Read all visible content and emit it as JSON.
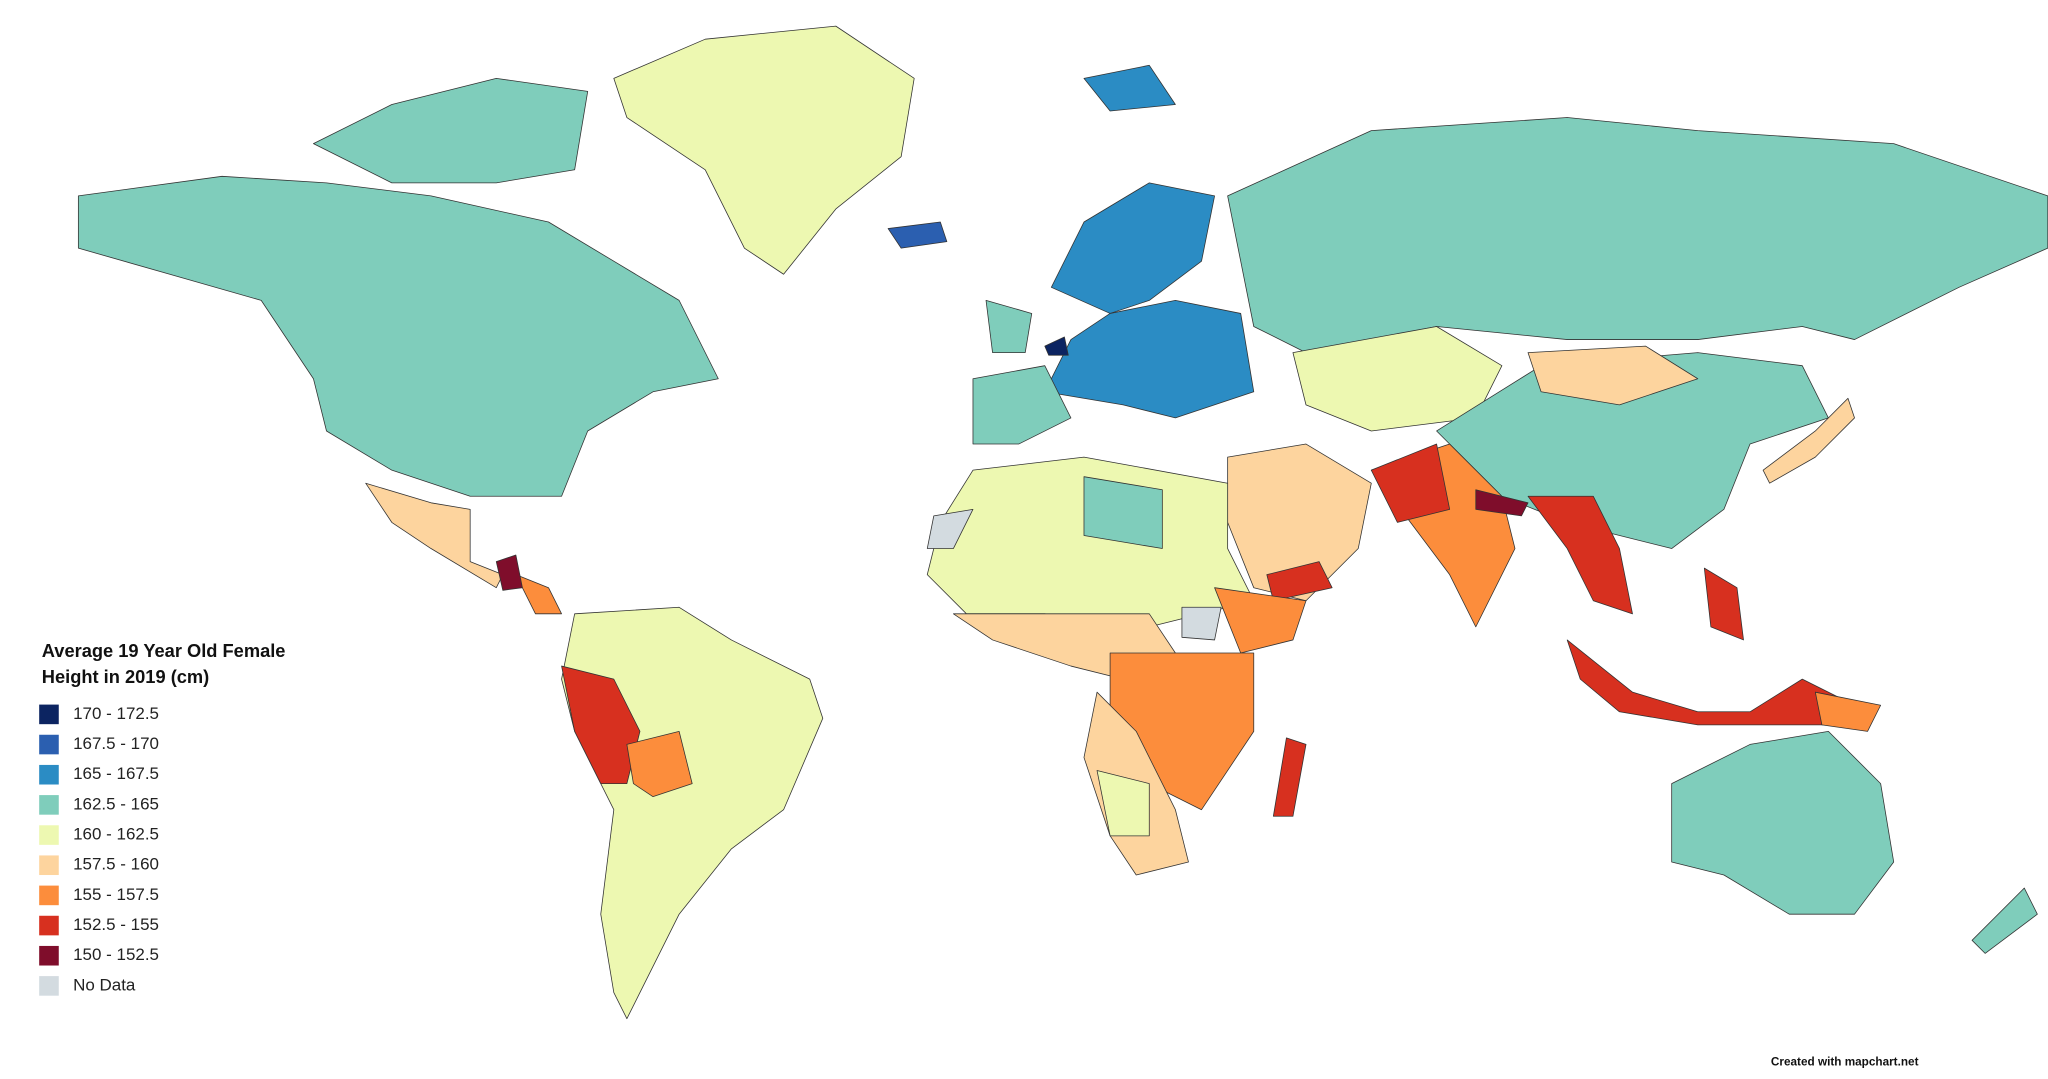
{
  "map": {
    "title": [
      "Average 19 Year Old Female",
      "Height in 2019 (cm)"
    ],
    "legend": [
      {
        "label": "170 - 172.5",
        "color": "#0c2461"
      },
      {
        "label": "167.5 - 170",
        "color": "#2b5fb0"
      },
      {
        "label": "165 - 167.5",
        "color": "#2b8cc4"
      },
      {
        "label": "162.5 - 165",
        "color": "#7fcdbb"
      },
      {
        "label": "160 - 162.5",
        "color": "#edf8b1"
      },
      {
        "label": "157.5 - 160",
        "color": "#fdd49e"
      },
      {
        "label": "155 - 157.5",
        "color": "#fc8d3c"
      },
      {
        "label": "152.5 - 155",
        "color": "#d7301f"
      },
      {
        "label": "150 - 152.5",
        "color": "#7f0d2b"
      },
      {
        "label": "No Data",
        "color": "#d3dbe0"
      }
    ],
    "credit": "Created with mapchart.net"
  }
}
